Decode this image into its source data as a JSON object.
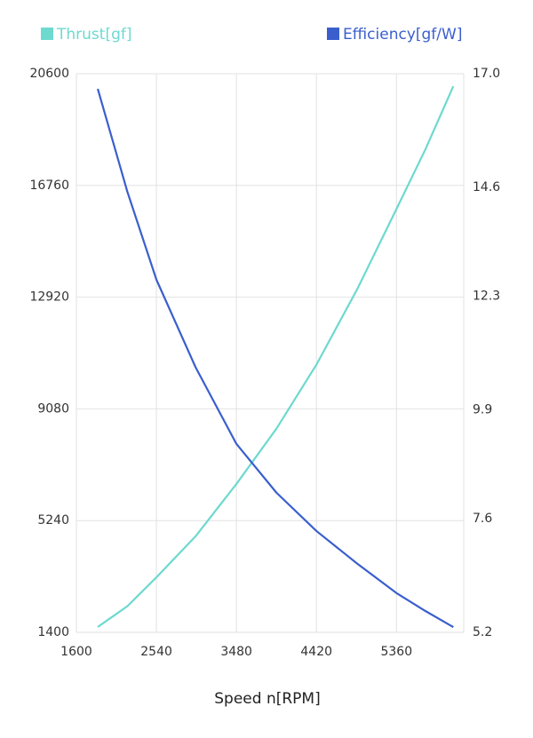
{
  "chart_data": {
    "type": "line",
    "x_label": "Speed n[RPM]",
    "x": [
      1851,
      2200,
      2540,
      3000,
      3480,
      3950,
      4420,
      4900,
      5360,
      5700,
      6028
    ],
    "series": [
      {
        "name": "Thrust[gf]",
        "color": "#6dd9cf",
        "values": [
          1583,
          2300,
          3290,
          4700,
          6500,
          8400,
          10600,
          13200,
          15950,
          18000,
          20170
        ]
      },
      {
        "name": "Efficiency[gf/W]",
        "color": "#3a5fcd",
        "axis": "y2",
        "values": [
          16.68,
          14.5,
          12.65,
          10.8,
          9.18,
          8.15,
          7.34,
          6.65,
          6.03,
          5.65,
          5.31
        ]
      }
    ],
    "xlim": [
      1600,
      6150
    ],
    "xticks": [
      1600,
      2540,
      3480,
      4420,
      5360
    ],
    "ylim": [
      1400,
      20600
    ],
    "yticks": [
      1400,
      5240,
      9080,
      12920,
      16760,
      20600
    ],
    "y2lim": [
      5.2,
      17.0
    ],
    "y2ticks": [
      5.2,
      7.6,
      9.9,
      12.3,
      14.6,
      {
        "value": 17,
        "label": "17.0"
      }
    ],
    "grid": true
  }
}
